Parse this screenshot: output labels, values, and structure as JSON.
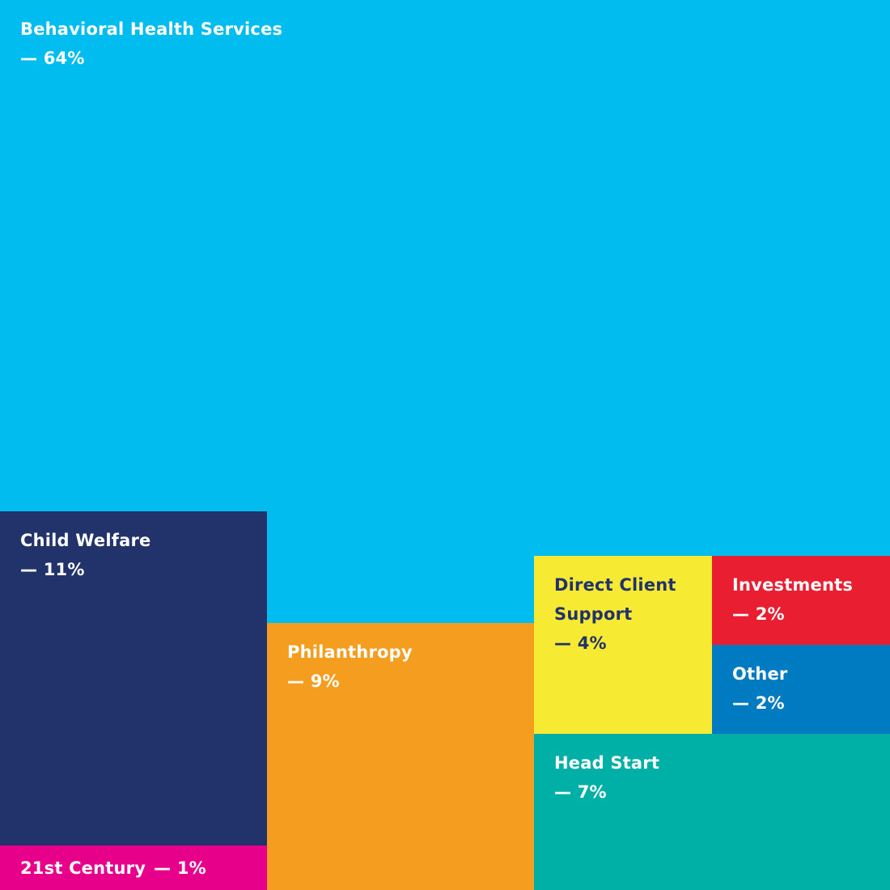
{
  "chart_data": {
    "type": "treemap",
    "categories": [
      "Behavioral Health Services",
      "Child Welfare",
      "21st Century",
      "Philanthropy",
      "Direct Client Support",
      "Investments",
      "Other",
      "Head Start"
    ],
    "values": [
      64,
      11,
      1,
      9,
      4,
      2,
      2,
      7
    ],
    "labels": [
      "— 64%",
      "— 11%",
      "— 1%",
      "— 9%",
      "— 4%",
      "— 2%",
      "— 2%",
      "— 7%"
    ],
    "colors": [
      "#00bcef",
      "#22326a",
      "#e6008a",
      "#f59d1f",
      "#f7ea33",
      "#e91e31",
      "#007bc1",
      "#00afa5"
    ],
    "text_colors": [
      "#ffffff",
      "#ffffff",
      "#ffffff",
      "#ffffff",
      "#22326a",
      "#ffffff",
      "#ffffff",
      "#ffffff"
    ],
    "unit": "%"
  }
}
